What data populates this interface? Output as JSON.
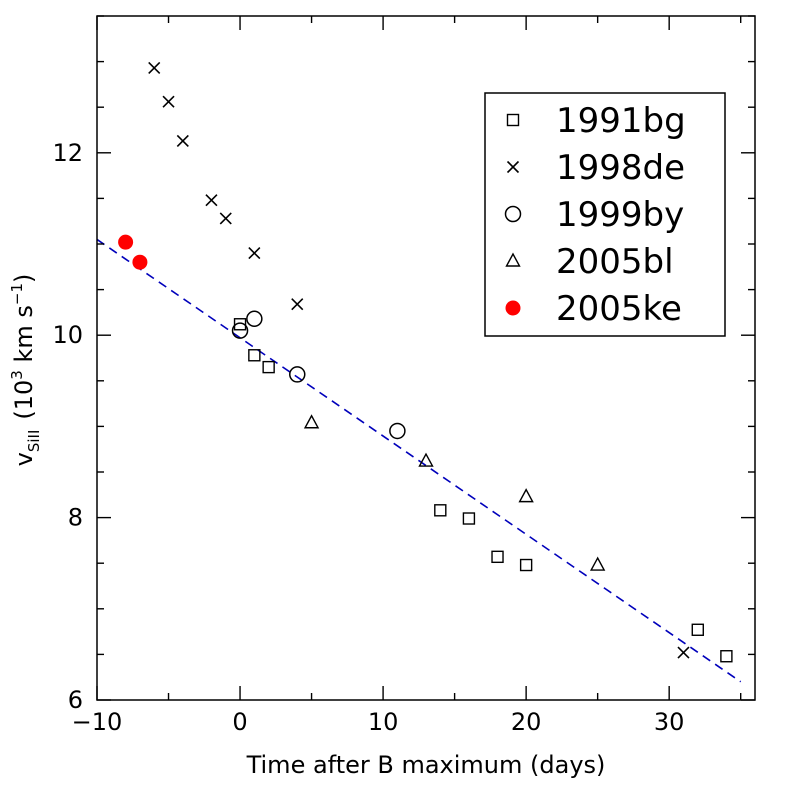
{
  "chart_data": {
    "type": "scatter",
    "title": "",
    "xlabel": "Time after B maximum (days)",
    "ylabel": {
      "main": "v",
      "subscript": "SiII",
      "units_prefix": "(10",
      "units_exp1": "3",
      "units_mid": " km s",
      "units_exp2": "−1",
      "units_suffix": ")"
    },
    "xlim": [
      -10,
      36
    ],
    "ylim": [
      6,
      13.5
    ],
    "xticks_major": [
      -10,
      0,
      10,
      20,
      30
    ],
    "xtick_labels": [
      "−10",
      "0",
      "10",
      "20",
      "30"
    ],
    "yticks_major": [
      6,
      8,
      10,
      12
    ],
    "ytick_labels": [
      "6",
      "8",
      "10",
      "12"
    ],
    "x_minor_step": 5,
    "y_minor_step": 0.5,
    "legend_position": "top-right",
    "series": [
      {
        "name": "1991bg",
        "marker": "square",
        "color": "#000000",
        "x": [
          0,
          1,
          2,
          14,
          16,
          18,
          20,
          32,
          34
        ],
        "y": [
          10.12,
          9.78,
          9.65,
          8.08,
          7.99,
          7.57,
          7.48,
          6.77,
          6.48
        ]
      },
      {
        "name": "1998de",
        "marker": "cross",
        "color": "#000000",
        "x": [
          -6,
          -5,
          -4,
          -2,
          -1,
          1,
          4,
          31
        ],
        "y": [
          12.93,
          12.56,
          12.13,
          11.48,
          11.28,
          10.9,
          10.34,
          6.52
        ]
      },
      {
        "name": "1999by",
        "marker": "circle",
        "color": "#000000",
        "x": [
          0,
          1,
          4,
          11
        ],
        "y": [
          10.05,
          10.18,
          9.57,
          8.95
        ]
      },
      {
        "name": "2005bl",
        "marker": "triangle",
        "color": "#000000",
        "x": [
          5,
          13,
          20,
          25
        ],
        "y": [
          9.04,
          8.62,
          8.23,
          7.48
        ]
      },
      {
        "name": "2005ke",
        "marker": "filled-circle",
        "color": "#ff0000",
        "x": [
          -8,
          -7
        ],
        "y": [
          11.02,
          10.8
        ]
      }
    ],
    "fit_line": {
      "style": "dashed",
      "color": "#0000bb",
      "x": [
        -10,
        35
      ],
      "y": [
        11.05,
        6.2
      ]
    }
  }
}
